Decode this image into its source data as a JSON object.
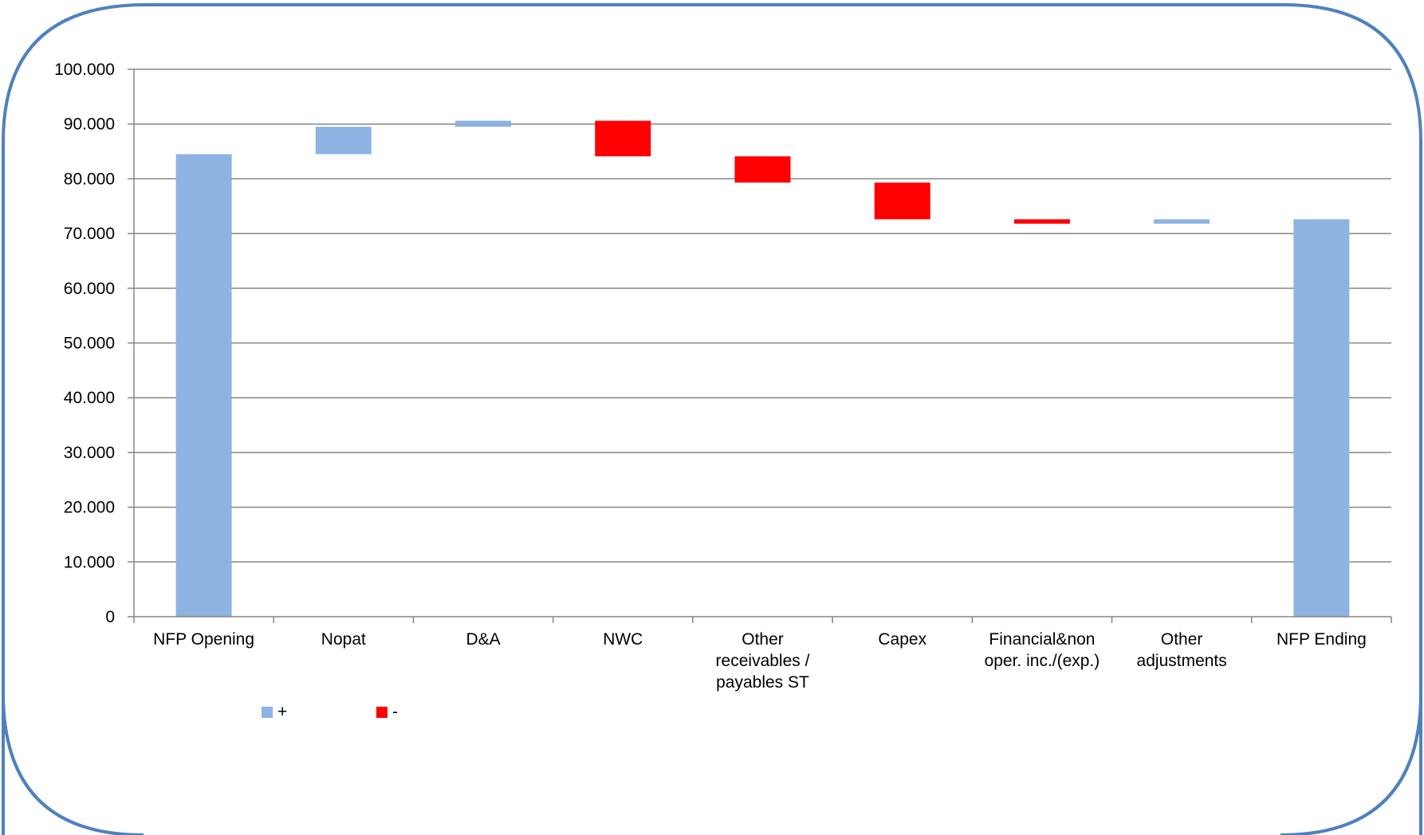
{
  "chart_data": {
    "type": "bar",
    "subtype": "waterfall",
    "title": "",
    "xlabel": "",
    "ylabel": "",
    "ylim": [
      0,
      100000
    ],
    "grid": true,
    "legend_placement": "bottom-left",
    "y_ticks": [
      "0",
      "10.000",
      "20.000",
      "30.000",
      "40.000",
      "50.000",
      "60.000",
      "70.000",
      "80.000",
      "90.000",
      "100.000"
    ],
    "categories": [
      [
        "NFP Opening"
      ],
      [
        "Nopat"
      ],
      [
        "D&A"
      ],
      [
        "NWC"
      ],
      [
        "Other",
        "receivables /",
        "payables ST"
      ],
      [
        "Capex"
      ],
      [
        "Financial&non",
        "oper. inc./(exp.)"
      ],
      [
        "Other",
        "adjustments"
      ],
      [
        "NFP Ending"
      ]
    ],
    "bars": [
      {
        "low": 0,
        "high": 84500,
        "sign": "+"
      },
      {
        "low": 84500,
        "high": 89500,
        "sign": "+"
      },
      {
        "low": 89500,
        "high": 90600,
        "sign": "+"
      },
      {
        "low": 84100,
        "high": 90600,
        "sign": "-"
      },
      {
        "low": 79300,
        "high": 84100,
        "sign": "-"
      },
      {
        "low": 72600,
        "high": 79300,
        "sign": "-"
      },
      {
        "low": 71800,
        "high": 72600,
        "sign": "-"
      },
      {
        "low": 71800,
        "high": 72600,
        "sign": "+"
      },
      {
        "low": 0,
        "high": 72600,
        "sign": "+"
      }
    ],
    "legend": [
      {
        "label": "+",
        "color": "#8DB3E2"
      },
      {
        "label": "-",
        "color": "#FF0000"
      }
    ],
    "colors": {
      "positive": "#8DB3E2",
      "negative": "#FF0000",
      "frame": "#4F81BD",
      "grid": "#868686"
    }
  }
}
